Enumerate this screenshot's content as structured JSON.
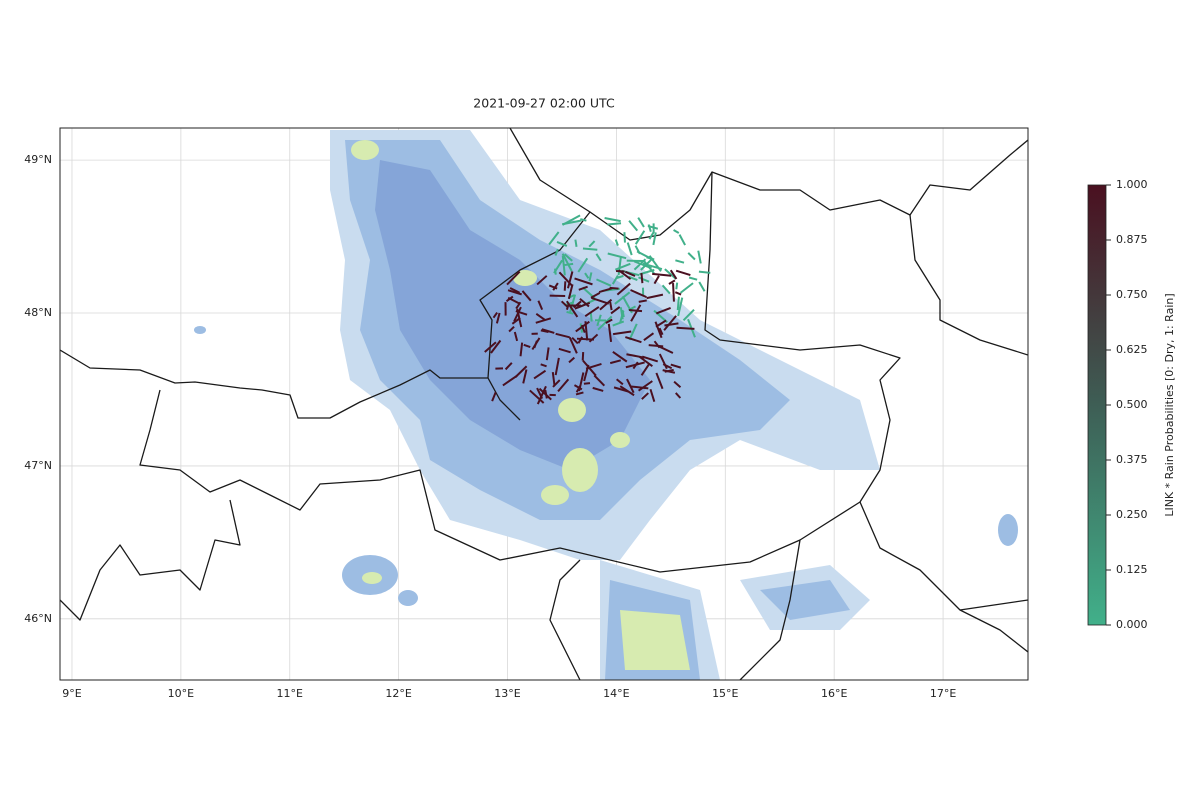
{
  "chart_data": {
    "type": "map",
    "title": "2021-09-27 02:00 UTC",
    "xlim": [
      8.89,
      17.78
    ],
    "ylim": [
      45.6,
      49.21
    ],
    "xticks": [
      {
        "value": 9,
        "label": "9°E"
      },
      {
        "value": 10,
        "label": "10°E"
      },
      {
        "value": 11,
        "label": "11°E"
      },
      {
        "value": 12,
        "label": "12°E"
      },
      {
        "value": 13,
        "label": "13°E"
      },
      {
        "value": 14,
        "label": "14°E"
      },
      {
        "value": 15,
        "label": "15°E"
      },
      {
        "value": 16,
        "label": "16°E"
      },
      {
        "value": 17,
        "label": "17°E"
      }
    ],
    "yticks": [
      {
        "value": 46,
        "label": "46°N"
      },
      {
        "value": 47,
        "label": "47°N"
      },
      {
        "value": 48,
        "label": "48°N"
      },
      {
        "value": 49,
        "label": "49°N"
      }
    ],
    "grid": true,
    "colorbar": {
      "label": "LINK * Rain Probabilities [0: Dry, 1: Rain]",
      "lim": [
        0,
        1
      ],
      "colors": [
        "#41b08a",
        "#3e5e55",
        "#4a1020"
      ],
      "ticks": [
        {
          "value": 0,
          "label": "0.000"
        },
        {
          "value": 0.125,
          "label": "0.125"
        },
        {
          "value": 0.25,
          "label": "0.250"
        },
        {
          "value": 0.375,
          "label": "0.375"
        },
        {
          "value": 0.5,
          "label": "0.500"
        },
        {
          "value": 0.625,
          "label": "0.625"
        },
        {
          "value": 0.75,
          "label": "0.750"
        },
        {
          "value": 0.875,
          "label": "0.875"
        },
        {
          "value": 1,
          "label": "1.000"
        }
      ]
    }
  }
}
